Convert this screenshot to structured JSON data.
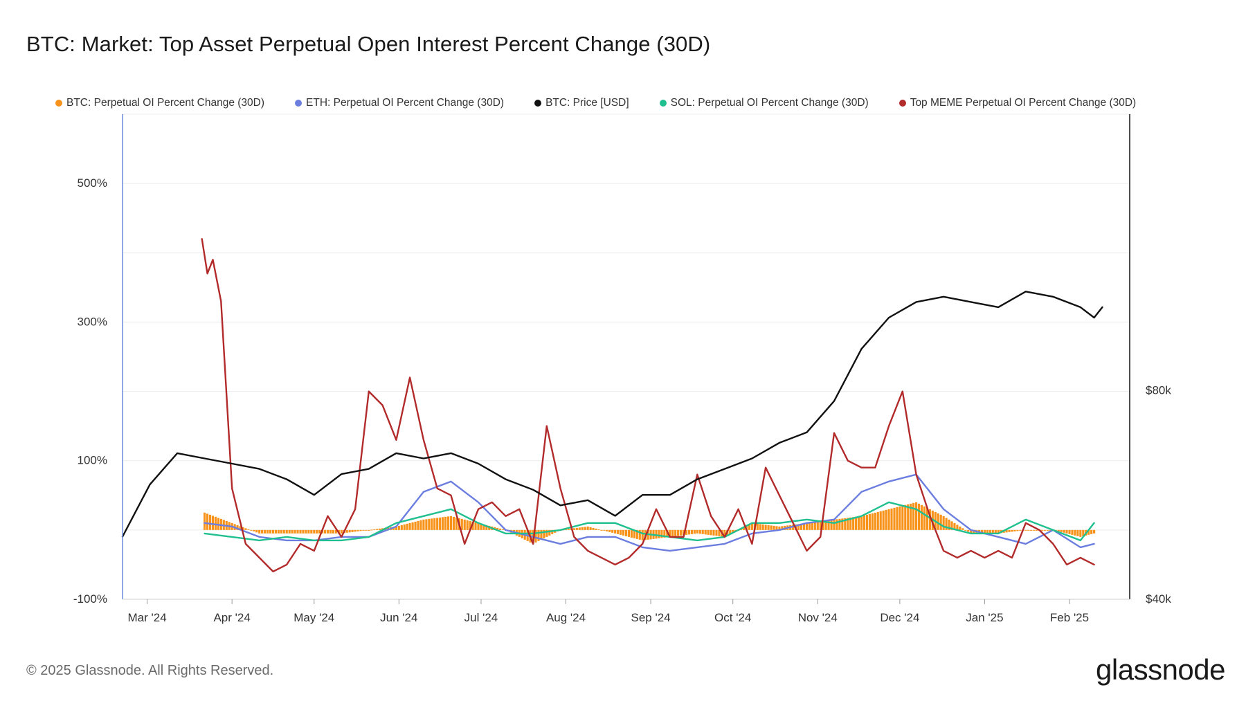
{
  "title": "BTC: Market: Top Asset Perpetual Open Interest Percent Change (30D)",
  "footer": "© 2025 Glassnode. All Rights Reserved.",
  "brand": "glassnode",
  "colors": {
    "btc_oi": "#f7931a",
    "eth_oi": "#6b7ee0",
    "btc_price": "#111111",
    "sol_oi": "#1fbf8f",
    "meme_oi": "#b22a2a"
  },
  "legend": [
    {
      "label": "BTC: Perpetual OI Percent Change (30D)",
      "color": "#f7931a"
    },
    {
      "label": "ETH: Perpetual OI Percent Change (30D)",
      "color": "#6b7ee0"
    },
    {
      "label": "BTC: Price [USD]",
      "color": "#111111"
    },
    {
      "label": "SOL: Perpetual OI Percent Change (30D)",
      "color": "#1fbf8f"
    },
    {
      "label": "Top MEME Perpetual OI Percent Change (30D)",
      "color": "#b22a2a"
    }
  ],
  "chart_data": {
    "type": "line",
    "title": "BTC: Market: Top Asset Perpetual Open Interest Percent Change (30D)",
    "x_range": [
      "2024-02-21",
      "2025-02-24"
    ],
    "x_ticks": [
      "Mar '24",
      "Apr '24",
      "May '24",
      "Jun '24",
      "Jul '24",
      "Aug '24",
      "Sep '24",
      "Oct '24",
      "Nov '24",
      "Dec '24",
      "Jan '25",
      "Feb '25"
    ],
    "y_left": {
      "ticks": [
        -100,
        100,
        300,
        500
      ],
      "tick_labels": [
        "-100%",
        "100%",
        "300%",
        "500%"
      ],
      "ylim": [
        -100,
        600
      ]
    },
    "y_right": {
      "ticks": [
        40000,
        80000
      ],
      "tick_labels": [
        "$40k",
        "$80k"
      ],
      "ylim": [
        40000,
        133000
      ]
    },
    "series": [
      {
        "name": "BTC: Price [USD]",
        "axis": "right",
        "kind": "line",
        "x": [
          0,
          10,
          20,
          30,
          40,
          50,
          60,
          70,
          80,
          90,
          100,
          110,
          120,
          130,
          140,
          150,
          160,
          170,
          180,
          190,
          200,
          210,
          220,
          230,
          240,
          250,
          260,
          270,
          280,
          290,
          300,
          310,
          320,
          330,
          340,
          350,
          355,
          358
        ],
        "values": [
          52000,
          62000,
          68000,
          67000,
          66000,
          65000,
          63000,
          60000,
          64000,
          65000,
          68000,
          67000,
          68000,
          66000,
          63000,
          61000,
          58000,
          59000,
          56000,
          60000,
          60000,
          63000,
          65000,
          67000,
          70000,
          72000,
          78000,
          88000,
          94000,
          97000,
          98000,
          97000,
          96000,
          99000,
          98000,
          96000,
          94000,
          96000
        ]
      },
      {
        "name": "BTC: Perpetual OI Percent Change (30D)",
        "axis": "left",
        "kind": "bar",
        "x": [
          30,
          40,
          50,
          60,
          70,
          80,
          90,
          100,
          110,
          120,
          130,
          140,
          150,
          160,
          170,
          180,
          190,
          200,
          210,
          220,
          230,
          240,
          250,
          260,
          270,
          280,
          290,
          300,
          310,
          320,
          330,
          340,
          350,
          355
        ],
        "values": [
          25,
          10,
          -5,
          -5,
          -5,
          -5,
          0,
          5,
          15,
          20,
          10,
          0,
          -20,
          0,
          5,
          -5,
          -15,
          -10,
          -5,
          -10,
          10,
          5,
          10,
          15,
          20,
          30,
          40,
          20,
          -5,
          -5,
          0,
          0,
          -10,
          -5
        ]
      },
      {
        "name": "ETH: Perpetual OI Percent Change (30D)",
        "axis": "left",
        "kind": "line",
        "x": [
          30,
          40,
          50,
          60,
          70,
          80,
          90,
          100,
          110,
          120,
          130,
          140,
          150,
          160,
          170,
          180,
          190,
          200,
          210,
          220,
          230,
          240,
          250,
          260,
          270,
          280,
          290,
          300,
          310,
          320,
          330,
          340,
          350,
          355
        ],
        "values": [
          10,
          5,
          -10,
          -15,
          -15,
          -10,
          -10,
          5,
          55,
          70,
          40,
          0,
          -10,
          -20,
          -10,
          -10,
          -25,
          -30,
          -25,
          -20,
          -5,
          0,
          10,
          15,
          55,
          70,
          80,
          30,
          0,
          -10,
          -20,
          0,
          -25,
          -20
        ]
      },
      {
        "name": "SOL: Perpetual OI Percent Change (30D)",
        "axis": "left",
        "kind": "line",
        "x": [
          30,
          40,
          50,
          60,
          70,
          80,
          90,
          100,
          110,
          120,
          130,
          140,
          150,
          160,
          170,
          180,
          190,
          200,
          210,
          220,
          230,
          240,
          250,
          260,
          270,
          280,
          290,
          300,
          310,
          320,
          330,
          340,
          350,
          355
        ],
        "values": [
          -5,
          -10,
          -15,
          -10,
          -15,
          -15,
          -10,
          10,
          20,
          30,
          10,
          -5,
          -5,
          0,
          10,
          10,
          -5,
          -10,
          -15,
          -10,
          10,
          10,
          15,
          10,
          20,
          40,
          30,
          5,
          -5,
          -5,
          15,
          0,
          -15,
          10
        ]
      },
      {
        "name": "Top MEME Perpetual OI Percent Change (30D)",
        "axis": "left",
        "kind": "line",
        "x": [
          29,
          31,
          33,
          36,
          40,
          45,
          50,
          55,
          60,
          65,
          70,
          75,
          80,
          85,
          90,
          95,
          100,
          105,
          110,
          115,
          120,
          125,
          130,
          135,
          140,
          145,
          150,
          155,
          160,
          165,
          170,
          175,
          180,
          185,
          190,
          195,
          200,
          205,
          210,
          215,
          220,
          225,
          230,
          235,
          240,
          245,
          250,
          255,
          260,
          265,
          270,
          275,
          280,
          285,
          290,
          295,
          300,
          305,
          310,
          315,
          320,
          325,
          330,
          335,
          340,
          345,
          350,
          355
        ],
        "values": [
          420,
          370,
          390,
          330,
          60,
          -20,
          -40,
          -60,
          -50,
          -20,
          -30,
          20,
          -10,
          30,
          200,
          180,
          130,
          220,
          130,
          60,
          50,
          -20,
          30,
          40,
          20,
          30,
          -20,
          150,
          60,
          -10,
          -30,
          -40,
          -50,
          -40,
          -20,
          30,
          -10,
          -10,
          80,
          20,
          -10,
          30,
          -20,
          90,
          50,
          10,
          -30,
          -10,
          140,
          100,
          90,
          90,
          150,
          200,
          80,
          20,
          -30,
          -40,
          -30,
          -40,
          -30,
          -40,
          10,
          0,
          -20,
          -50,
          -40,
          -50
        ]
      }
    ]
  }
}
